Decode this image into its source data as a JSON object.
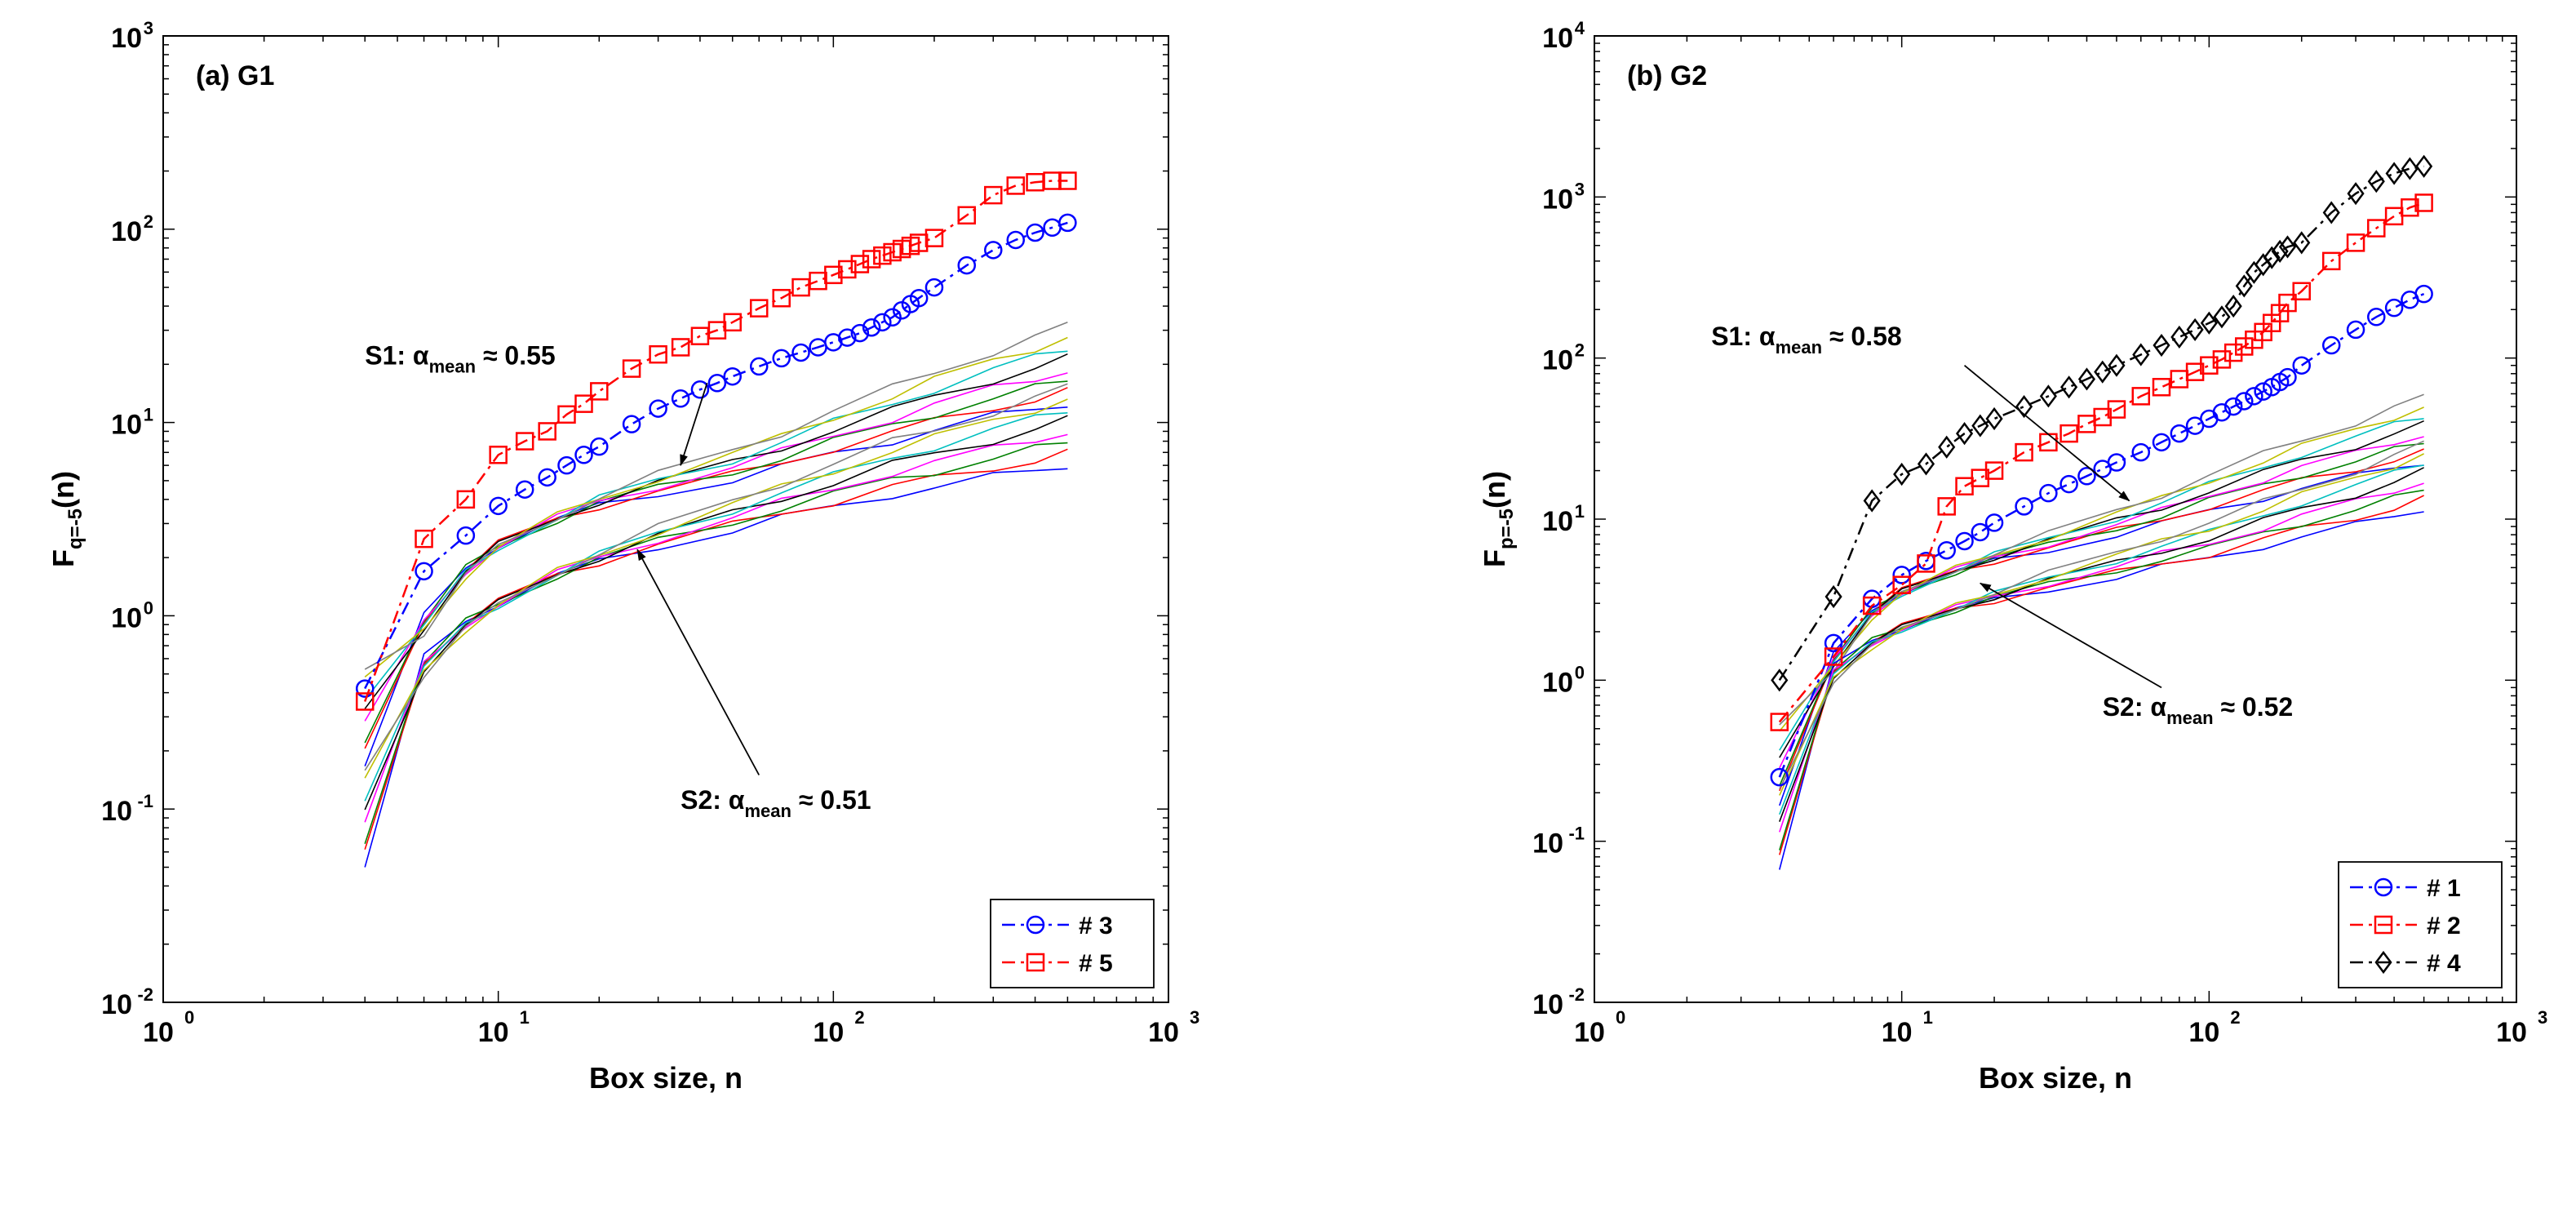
{
  "chart_data": [
    {
      "type": "line",
      "panel_label": "(a) G1",
      "xlabel": "Box size, n",
      "ylabel_main": "F",
      "ylabel_sub": "q=-5",
      "ylabel_tail": "(n)",
      "x_scale": "log",
      "y_scale": "log",
      "xlim": [
        1,
        1000
      ],
      "ylim": [
        0.01,
        1000
      ],
      "x_ticks": [
        {
          "value": 1,
          "base": "10",
          "exp": "0"
        },
        {
          "value": 10,
          "base": "10",
          "exp": "1"
        },
        {
          "value": 100,
          "base": "10",
          "exp": "2"
        },
        {
          "value": 1000,
          "base": "10",
          "exp": "3"
        }
      ],
      "y_ticks": [
        {
          "value": 0.01,
          "base": "10",
          "exp": "-2"
        },
        {
          "value": 0.1,
          "base": "10",
          "exp": "-1"
        },
        {
          "value": 1,
          "base": "10",
          "exp": "0"
        },
        {
          "value": 10,
          "base": "10",
          "exp": "1"
        },
        {
          "value": 100,
          "base": "10",
          "exp": "2"
        },
        {
          "value": 1000,
          "base": "10",
          "exp": "3"
        }
      ],
      "legend_position": "bottom-right",
      "series": [
        {
          "name": "# 3",
          "color": "#0000ff",
          "marker": "circle",
          "dash": "dashdot",
          "x": [
            4,
            6,
            8,
            10,
            12,
            14,
            16,
            18,
            20,
            25,
            30,
            35,
            40,
            45,
            50,
            60,
            70,
            80,
            90,
            100,
            110,
            120,
            130,
            140,
            150,
            160,
            170,
            180,
            200,
            250,
            300,
            350,
            400,
            450,
            500
          ],
          "y": [
            0.42,
            1.7,
            2.6,
            3.7,
            4.5,
            5.2,
            6.0,
            6.8,
            7.5,
            9.8,
            11.8,
            13.3,
            14.8,
            16.0,
            17.3,
            19.5,
            21.5,
            23.0,
            24.5,
            26.0,
            27.5,
            29.0,
            31.0,
            33.0,
            35.0,
            38.0,
            41.0,
            44.0,
            50.0,
            65.0,
            78.0,
            88.0,
            96.0,
            102.0,
            108.0
          ]
        },
        {
          "name": "# 5",
          "color": "#ff0000",
          "marker": "square",
          "dash": "dashdot",
          "x": [
            4,
            6,
            8,
            10,
            12,
            14,
            16,
            18,
            20,
            25,
            30,
            35,
            40,
            45,
            50,
            60,
            70,
            80,
            90,
            100,
            110,
            120,
            130,
            140,
            150,
            160,
            170,
            180,
            200,
            250,
            300,
            350,
            400,
            450,
            500
          ],
          "y": [
            0.36,
            2.5,
            4.0,
            6.8,
            8.0,
            9.0,
            11.0,
            12.5,
            14.5,
            19.0,
            22.5,
            24.5,
            28.0,
            30.0,
            33.0,
            39.0,
            44.0,
            50.0,
            54.0,
            58.0,
            62.0,
            66.0,
            70.0,
            73.0,
            76.0,
            79.0,
            82.0,
            85.0,
            90.0,
            118.0,
            150.0,
            168.0,
            175.0,
            178.0,
            178.0
          ]
        }
      ],
      "background_group_1": {
        "x": [
          4,
          6,
          8,
          10,
          15,
          20,
          30,
          50,
          70,
          100,
          150,
          200,
          300,
          400,
          500
        ],
        "y": [
          0.3,
          0.9,
          1.7,
          2.3,
          3.2,
          3.9,
          4.8,
          6.0,
          7.2,
          8.9,
          11.0,
          12.9,
          15.8,
          18.0,
          20.0
        ]
      },
      "background_group_2": {
        "x": [
          4,
          6,
          8,
          10,
          15,
          20,
          30,
          50,
          70,
          100,
          150,
          200,
          300,
          400,
          500
        ],
        "y": [
          0.09,
          0.55,
          0.9,
          1.15,
          1.65,
          2.0,
          2.55,
          3.3,
          3.95,
          4.7,
          5.8,
          6.5,
          7.7,
          8.7,
          9.6
        ]
      },
      "annotations": [
        {
          "pre": "S1: α",
          "sub": "mean",
          "post": " ≈ 0.55",
          "x": 4.0,
          "y": 20,
          "arrow_from": [
            42,
            16
          ],
          "arrow_to": [
            35,
            6.0
          ]
        },
        {
          "pre": "S2: α",
          "sub": "mean",
          "post": " ≈ 0.51",
          "x": 35,
          "y": 0.1,
          "arrow_from": [
            60,
            0.15
          ],
          "arrow_to": [
            26,
            2.2
          ]
        }
      ]
    },
    {
      "type": "line",
      "panel_label": "(b) G2",
      "xlabel": "Box size, n",
      "ylabel_main": "F",
      "ylabel_sub": "p=-5",
      "ylabel_tail": "(n)",
      "x_scale": "log",
      "y_scale": "log",
      "xlim": [
        1,
        1000
      ],
      "ylim": [
        0.01,
        10000
      ],
      "x_ticks": [
        {
          "value": 1,
          "base": "10",
          "exp": "0"
        },
        {
          "value": 10,
          "base": "10",
          "exp": "1"
        },
        {
          "value": 100,
          "base": "10",
          "exp": "2"
        },
        {
          "value": 1000,
          "base": "10",
          "exp": "3"
        }
      ],
      "y_ticks": [
        {
          "value": 0.01,
          "base": "10",
          "exp": "-2"
        },
        {
          "value": 0.1,
          "base": "10",
          "exp": "-1"
        },
        {
          "value": 1,
          "base": "10",
          "exp": "0"
        },
        {
          "value": 10,
          "base": "10",
          "exp": "1"
        },
        {
          "value": 100,
          "base": "10",
          "exp": "2"
        },
        {
          "value": 1000,
          "base": "10",
          "exp": "3"
        },
        {
          "value": 10000,
          "base": "10",
          "exp": "4"
        }
      ],
      "legend_position": "bottom-right",
      "series": [
        {
          "name": "# 1",
          "color": "#0000ff",
          "marker": "circle",
          "dash": "dashdot",
          "x": [
            4,
            6,
            8,
            10,
            12,
            14,
            16,
            18,
            20,
            25,
            30,
            35,
            40,
            45,
            50,
            60,
            70,
            80,
            90,
            100,
            110,
            120,
            130,
            140,
            150,
            160,
            170,
            180,
            200,
            250,
            300,
            350,
            400,
            450,
            500
          ],
          "y": [
            0.25,
            1.7,
            3.2,
            4.5,
            5.5,
            6.4,
            7.3,
            8.3,
            9.5,
            12.0,
            14.5,
            16.5,
            18.5,
            20.5,
            22.5,
            26.0,
            30.0,
            34.0,
            38.0,
            42.0,
            46.0,
            50.0,
            54.0,
            58.0,
            62.0,
            66.0,
            71.0,
            76.0,
            90.0,
            120.0,
            150.0,
            180.0,
            205.0,
            230.0,
            250.0
          ]
        },
        {
          "name": "# 2",
          "color": "#ff0000",
          "marker": "square",
          "dash": "dashdot",
          "x": [
            4,
            6,
            8,
            10,
            12,
            14,
            16,
            18,
            20,
            25,
            30,
            35,
            40,
            45,
            50,
            60,
            70,
            80,
            90,
            100,
            110,
            120,
            130,
            140,
            150,
            160,
            170,
            180,
            200,
            250,
            300,
            350,
            400,
            450,
            500
          ],
          "y": [
            0.55,
            1.4,
            2.9,
            3.9,
            5.3,
            12.0,
            16.0,
            18.0,
            20.0,
            26.0,
            30.0,
            34.0,
            39.0,
            43.0,
            48.0,
            58.0,
            66.0,
            74.0,
            82.0,
            90.0,
            98.0,
            108.0,
            118.0,
            130.0,
            145.0,
            165.0,
            190.0,
            220.0,
            260.0,
            400.0,
            520.0,
            640.0,
            760.0,
            860.0,
            920.0
          ]
        },
        {
          "name": "# 4",
          "color": "#000000",
          "marker": "diamond",
          "dash": "dashdot",
          "x": [
            4,
            6,
            8,
            10,
            12,
            14,
            16,
            18,
            20,
            25,
            30,
            35,
            40,
            45,
            50,
            60,
            70,
            80,
            90,
            100,
            110,
            120,
            130,
            140,
            150,
            160,
            170,
            180,
            200,
            250,
            300,
            350,
            400,
            450,
            500
          ],
          "y": [
            1.0,
            3.3,
            13.0,
            19.0,
            22.0,
            28.0,
            34.0,
            38.0,
            42.0,
            50.0,
            58.0,
            66.0,
            74.0,
            82.0,
            90.0,
            105.0,
            120.0,
            135.0,
            150.0,
            165.0,
            180.0,
            210.0,
            280.0,
            340.0,
            380.0,
            420.0,
            460.0,
            490.0,
            520.0,
            800.0,
            1050.0,
            1250.0,
            1400.0,
            1500.0,
            1550.0
          ]
        }
      ],
      "background_group_1": {
        "x": [
          4,
          6,
          8,
          10,
          15,
          20,
          30,
          50,
          70,
          100,
          150,
          200,
          300,
          400,
          500
        ],
        "y": [
          0.3,
          1.3,
          2.6,
          3.5,
          4.8,
          5.8,
          7.2,
          9.5,
          11.5,
          14.5,
          18.5,
          22.0,
          27.0,
          32.0,
          36.0
        ]
      },
      "background_group_2": {
        "x": [
          4,
          6,
          8,
          10,
          15,
          20,
          30,
          50,
          70,
          100,
          150,
          200,
          300,
          400,
          500
        ],
        "y": [
          0.12,
          1.1,
          1.7,
          2.1,
          2.8,
          3.3,
          4.1,
          5.2,
          6.2,
          7.3,
          9.3,
          11.0,
          13.5,
          16.0,
          18.5
        ]
      },
      "annotations": [
        {
          "pre": "S1: α",
          "sub": "mean",
          "post": " ≈ 0.58",
          "x": 2.4,
          "y": 120,
          "arrow_from": [
            16,
            90
          ],
          "arrow_to": [
            55,
            13
          ]
        },
        {
          "pre": "S2: α",
          "sub": "mean",
          "post": " ≈ 0.52",
          "x": 45,
          "y": 0.6,
          "arrow_from": [
            70,
            0.9
          ],
          "arrow_to": [
            18,
            4.0
          ]
        }
      ]
    }
  ]
}
